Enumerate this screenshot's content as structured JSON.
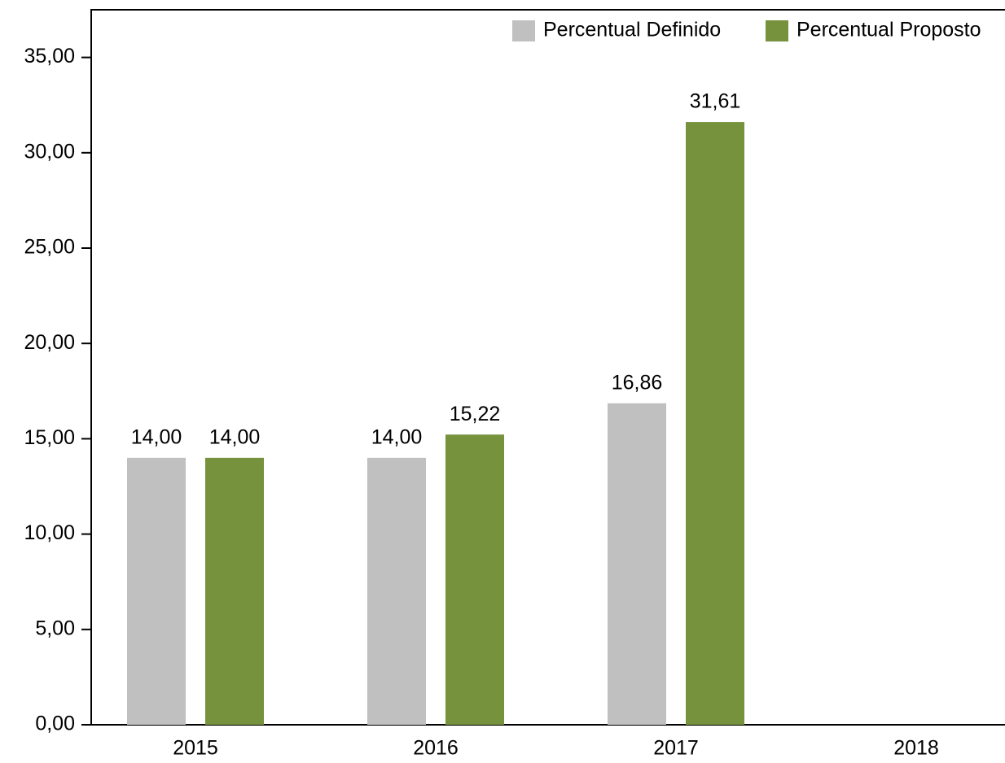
{
  "chart_data": {
    "type": "bar",
    "categories": [
      "2015",
      "2016",
      "2017",
      "2018"
    ],
    "series": [
      {
        "name": "Percentual Definido",
        "color": "#c0c0c0",
        "values": [
          14.0,
          14.0,
          16.86,
          null
        ],
        "value_labels": [
          "14,00",
          "14,00",
          "16,86",
          null
        ]
      },
      {
        "name": "Percentual Proposto",
        "color": "#76923c",
        "values": [
          14.0,
          15.22,
          31.61,
          null
        ],
        "value_labels": [
          "14,00",
          "15,22",
          "31,61",
          null
        ]
      }
    ],
    "ylim": [
      0,
      37.5
    ],
    "yticks": [
      {
        "value": 0,
        "label": "0,00"
      },
      {
        "value": 5,
        "label": "5,00"
      },
      {
        "value": 10,
        "label": "10,00"
      },
      {
        "value": 15,
        "label": "15,00"
      },
      {
        "value": 20,
        "label": "20,00"
      },
      {
        "value": 25,
        "label": "25,00"
      },
      {
        "value": 30,
        "label": "30,00"
      },
      {
        "value": 35,
        "label": "35,00"
      }
    ],
    "legend": "top-right"
  }
}
